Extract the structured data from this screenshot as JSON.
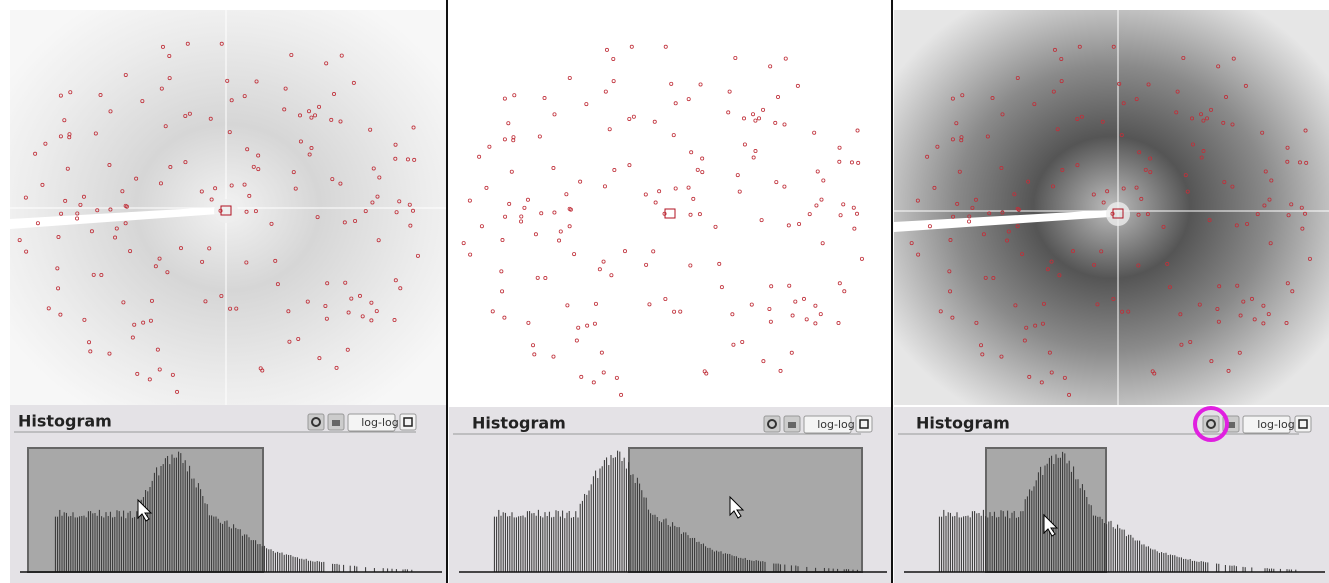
{
  "panels": [
    {
      "header": {
        "title": "Histogram"
      },
      "buttons": {
        "scale": "log-log"
      }
    },
    {
      "header": {
        "title": "Histogram"
      },
      "buttons": {
        "scale": "log-log"
      }
    },
    {
      "header": {
        "title": "Histogram"
      },
      "buttons": {
        "scale": "log-log"
      }
    }
  ]
}
